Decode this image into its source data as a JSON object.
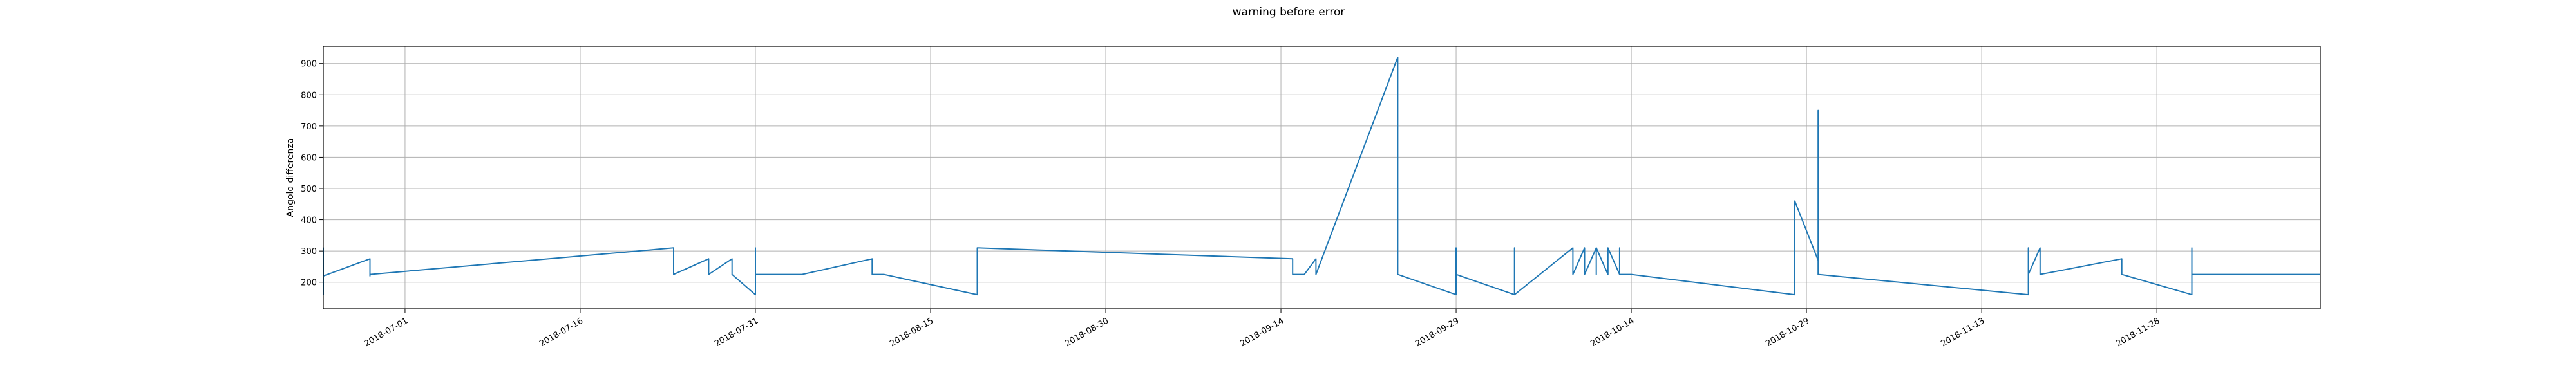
{
  "chart_data": {
    "type": "line",
    "title": "warning before error",
    "xlabel": "",
    "ylabel": "Angolo differenza",
    "grid": true,
    "legend": "none",
    "color": "#1f77b4",
    "xlim": [
      "2018-06-24",
      "2018-12-12"
    ],
    "ylim": [
      115,
      955
    ],
    "x_ticks": [
      "2018-07-01",
      "2018-07-16",
      "2018-07-31",
      "2018-08-15",
      "2018-08-30",
      "2018-09-14",
      "2018-09-29",
      "2018-10-14",
      "2018-10-29",
      "2018-11-13",
      "2018-11-28"
    ],
    "y_ticks": [
      200,
      300,
      400,
      500,
      600,
      700,
      800,
      900
    ],
    "series": [
      {
        "x": [
          "2018-06-24",
          "2018-06-24",
          "2018-06-24",
          "2018-06-24",
          "2018-06-28",
          "2018-06-28",
          "2018-06-28",
          "2018-07-24",
          "2018-07-24",
          "2018-07-27",
          "2018-07-27",
          "2018-07-29",
          "2018-07-29",
          "2018-07-31",
          "2018-07-31",
          "2018-07-31",
          "2018-08-04",
          "2018-08-10",
          "2018-08-10",
          "2018-08-11",
          "2018-08-19",
          "2018-08-19",
          "2018-09-15",
          "2018-09-15",
          "2018-09-16",
          "2018-09-17",
          "2018-09-17",
          "2018-09-24",
          "2018-09-24",
          "2018-09-29",
          "2018-09-29",
          "2018-09-29",
          "2018-10-04",
          "2018-10-04",
          "2018-10-04",
          "2018-10-09",
          "2018-10-09",
          "2018-10-10",
          "2018-10-10",
          "2018-10-11",
          "2018-10-11",
          "2018-10-11",
          "2018-10-12",
          "2018-10-12",
          "2018-10-13",
          "2018-10-13",
          "2018-10-13",
          "2018-10-14",
          "2018-10-28",
          "2018-10-28",
          "2018-10-30",
          "2018-10-30",
          "2018-10-30",
          "2018-10-30",
          "2018-11-17",
          "2018-11-17",
          "2018-11-17",
          "2018-11-18",
          "2018-11-18",
          "2018-11-25",
          "2018-11-25",
          "2018-11-25",
          "2018-12-01",
          "2018-12-01",
          "2018-12-01",
          "2018-12-12"
        ],
        "y": [
          310,
          160,
          310,
          220,
          275,
          220,
          225,
          310,
          225,
          275,
          225,
          275,
          225,
          160,
          310,
          225,
          225,
          275,
          225,
          225,
          160,
          310,
          275,
          225,
          225,
          275,
          225,
          920,
          225,
          160,
          310,
          225,
          160,
          310,
          160,
          310,
          225,
          310,
          225,
          310,
          225,
          310,
          225,
          310,
          225,
          310,
          225,
          225,
          160,
          460,
          270,
          225,
          750,
          225,
          160,
          310,
          225,
          310,
          225,
          275,
          225,
          225,
          160,
          310,
          225,
          225
        ]
      }
    ]
  }
}
